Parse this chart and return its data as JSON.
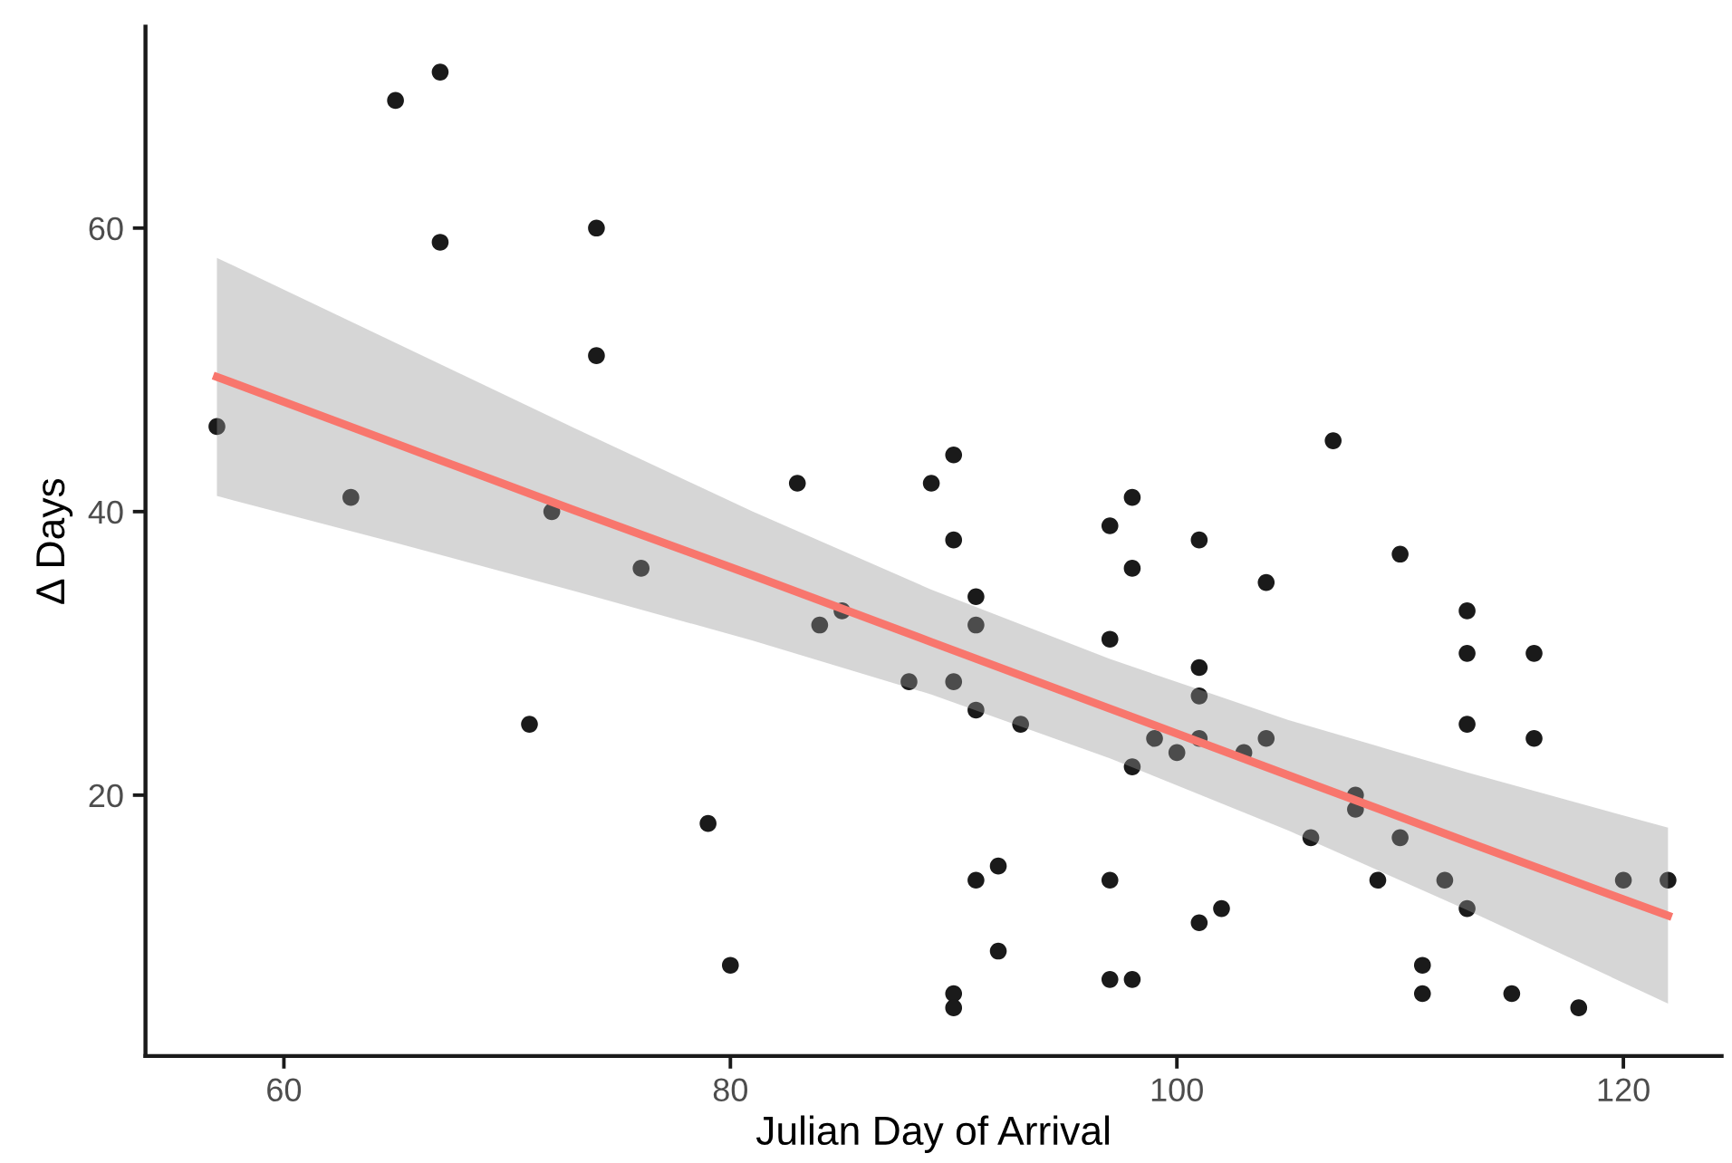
{
  "chart_data": {
    "type": "scatter",
    "xlabel": "Julian Day of Arrival",
    "ylabel": "Δ Days",
    "xlim": [
      53.8,
      124.4
    ],
    "ylim": [
      1.6,
      74.2
    ],
    "xticks": [
      60,
      80,
      100,
      120
    ],
    "yticks": [
      20,
      40,
      60
    ],
    "grid": false,
    "series": [
      {
        "color": "#1a1a1a",
        "marker": "circle",
        "x": [
          57,
          63,
          65,
          67,
          67,
          74,
          74,
          71,
          72,
          76,
          79,
          80,
          83,
          84,
          85,
          88,
          89,
          90,
          90,
          90,
          90,
          90,
          91,
          91,
          91,
          91,
          92,
          92,
          93,
          97,
          97,
          97,
          97,
          98,
          98,
          98,
          98,
          99,
          100,
          101,
          101,
          101,
          101,
          101,
          102,
          103,
          104,
          104,
          106,
          107,
          108,
          108,
          109,
          110,
          110,
          111,
          111,
          112,
          113,
          113,
          113,
          113,
          115,
          116,
          116,
          118,
          120,
          122
        ],
        "values": [
          46,
          41,
          69,
          71,
          59,
          60,
          51,
          25,
          40,
          36,
          18,
          8,
          42,
          32,
          33,
          28,
          42,
          44,
          38,
          28,
          6,
          5,
          34,
          32,
          26,
          14,
          15,
          9,
          25,
          39,
          31,
          14,
          7,
          41,
          36,
          22,
          7,
          24,
          23,
          38,
          29,
          27,
          24,
          11,
          12,
          23,
          35,
          24,
          17,
          45,
          20,
          19,
          14,
          37,
          17,
          8,
          6,
          14,
          33,
          30,
          25,
          12,
          6,
          30,
          24,
          5,
          14,
          14
        ]
      },
      {
        "type": "line",
        "color": "#f8766d",
        "line_style": "solid",
        "marker": "none",
        "x": [
          57,
          65,
          73,
          81,
          89,
          97,
          105,
          113,
          122
        ],
        "values": [
          49.5,
          44.8,
          40.1,
          35.5,
          30.8,
          26.1,
          21.4,
          16.7,
          11.5
        ],
        "lower": [
          41.1,
          37.8,
          34.4,
          30.9,
          27.1,
          22.6,
          17.5,
          11.9,
          5.3
        ],
        "upper": [
          57.9,
          51.9,
          45.9,
          40.0,
          34.5,
          29.6,
          25.3,
          21.6,
          17.7
        ]
      }
    ]
  }
}
